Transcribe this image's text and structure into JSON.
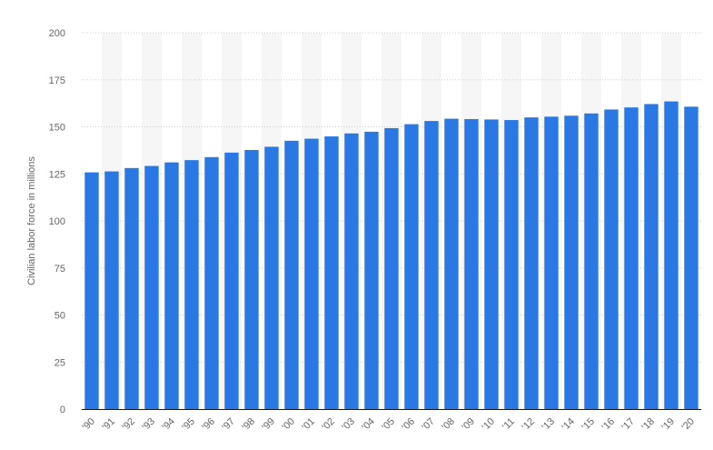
{
  "chart_data": {
    "type": "bar",
    "title": "",
    "xlabel": "",
    "ylabel": "Civilian labor force in millions",
    "ylim": [
      0,
      200
    ],
    "yticks": [
      0,
      25,
      50,
      75,
      100,
      125,
      150,
      175,
      200
    ],
    "grid": true,
    "legend": "none",
    "categories": [
      "'90",
      "'91",
      "'92",
      "'93",
      "'94",
      "'95",
      "'96",
      "'97",
      "'98",
      "'99",
      "'00",
      "'01",
      "'02",
      "'03",
      "'04",
      "'05",
      "'06",
      "'07",
      "'08",
      "'09",
      "'10",
      "'11",
      "'12",
      "'13",
      "'14",
      "'15",
      "'16",
      "'17",
      "'18",
      "'19",
      "'20"
    ],
    "values": [
      125.8,
      126.3,
      128.1,
      129.2,
      131.1,
      132.3,
      133.9,
      136.3,
      137.7,
      139.4,
      142.6,
      143.7,
      144.9,
      146.5,
      147.4,
      149.3,
      151.4,
      153.1,
      154.3,
      154.1,
      153.9,
      153.6,
      155.0,
      155.4,
      155.9,
      157.1,
      159.2,
      160.3,
      162.1,
      163.5,
      160.7
    ],
    "colors": {
      "bar": "#2a78e4"
    }
  }
}
